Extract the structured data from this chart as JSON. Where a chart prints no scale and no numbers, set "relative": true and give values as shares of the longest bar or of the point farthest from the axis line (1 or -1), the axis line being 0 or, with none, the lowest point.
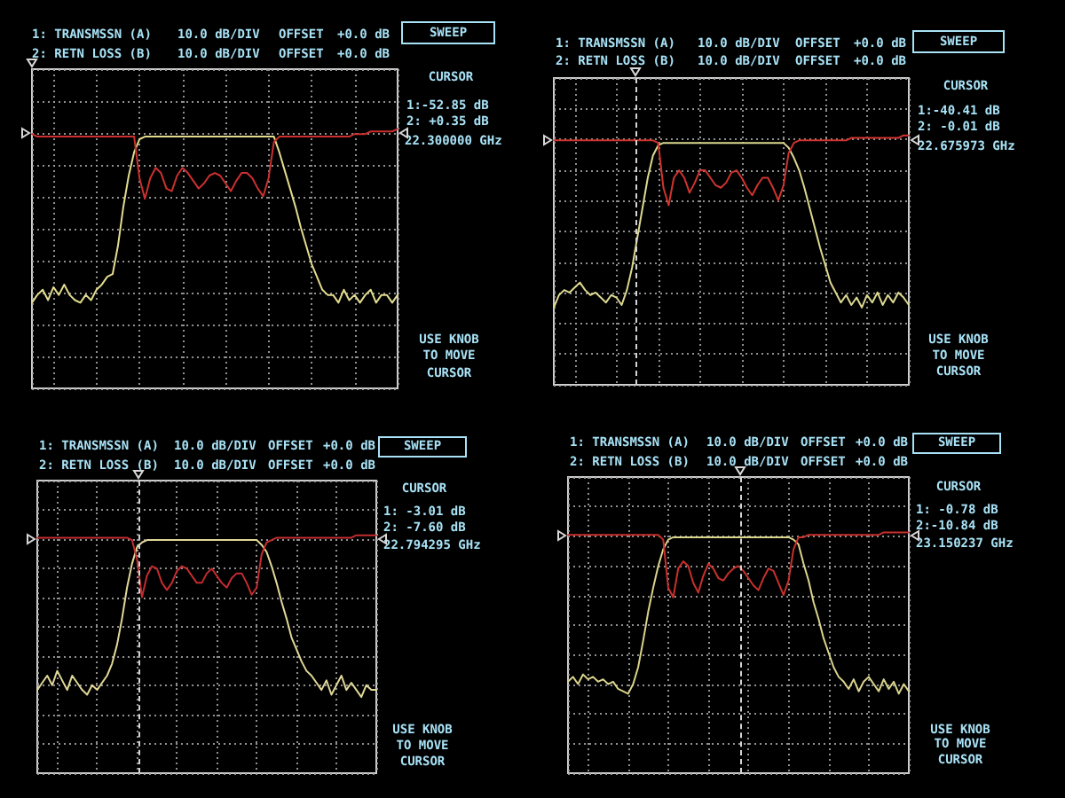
{
  "chart_data": [
    {
      "type": "line",
      "relative": true,
      "categories": [
        null,
        null,
        null,
        null,
        null,
        null,
        null,
        null,
        null,
        null,
        null,
        null,
        null,
        null,
        null,
        null,
        null,
        null,
        null,
        null,
        null,
        null,
        null,
        null,
        null,
        null,
        null,
        null,
        null,
        null,
        null,
        null,
        null,
        null,
        null,
        null,
        null,
        null,
        null,
        null,
        null,
        null,
        null,
        null,
        null,
        null,
        null,
        null,
        null,
        null,
        null,
        null,
        null,
        null,
        null,
        null,
        null,
        null,
        null,
        null,
        null,
        null,
        null,
        null,
        null,
        null,
        null,
        null,
        null
      ],
      "series": [
        {
          "color": "#e2dc8e",
          "values": [
            0.33,
            0.36,
            0.38,
            0.34,
            0.39,
            0.36,
            0.4,
            0.36,
            0.34,
            0.33,
            0.36,
            0.34,
            0.38,
            0.4,
            0.43,
            0.44,
            0.55,
            0.7,
            0.82,
            0.91,
            0.96,
            0.97,
            0.97,
            0.97,
            0.97,
            0.97,
            0.97,
            0.97,
            0.97,
            0.97,
            0.97,
            0.97,
            0.97,
            0.97,
            0.97,
            0.97,
            0.97,
            0.97,
            0.97,
            0.97,
            0.97,
            0.97,
            0.97,
            0.97,
            0.97,
            0.97,
            0.91,
            0.84,
            0.77,
            0.7,
            0.62,
            0.55,
            0.48,
            0.43,
            0.38,
            0.36,
            0.36,
            0.33,
            0.38,
            0.34,
            0.36,
            0.33,
            0.36,
            0.38,
            0.33,
            0.36,
            0.36,
            0.33,
            0.36
          ]
        },
        {
          "color": "#cc3030",
          "values": [
            0.98,
            0.97,
            0.97,
            0.97,
            0.97,
            0.97,
            0.97,
            0.97,
            0.97,
            0.97,
            0.97,
            0.97,
            0.97,
            0.97,
            0.97,
            0.97,
            0.97,
            0.97,
            0.97,
            0.97,
            0.81,
            0.73,
            0.81,
            0.85,
            0.83,
            0.77,
            0.76,
            0.82,
            0.85,
            0.83,
            0.8,
            0.77,
            0.79,
            0.82,
            0.83,
            0.82,
            0.79,
            0.76,
            0.8,
            0.83,
            0.83,
            0.81,
            0.77,
            0.74,
            0.81,
            0.95,
            0.97,
            0.97,
            0.97,
            0.97,
            0.97,
            0.97,
            0.97,
            0.97,
            0.97,
            0.97,
            0.97,
            0.97,
            0.97,
            0.97,
            0.98,
            0.98,
            0.98,
            0.99,
            0.99,
            0.99,
            0.99,
            0.99,
            1.0
          ]
        }
      ],
      "grid": true,
      "tick_labels": false,
      "marker": "none",
      "line_style": "solid",
      "annotations": [
        "1: TRANSMSSN (A)",
        "10.0 dB/DIV",
        "OFFSET",
        "+0.0 dB",
        "2: RETN LOSS (B)",
        "10.0 dB/DIV",
        "OFFSET",
        "+0.0 dB",
        "SWEEP",
        "CURSOR",
        "1:-52.85 dB",
        "2: +0.35 dB",
        "22.300000 GHz",
        "USE KNOB",
        "TO MOVE",
        "CURSOR"
      ]
    },
    {
      "type": "line",
      "relative": true,
      "categories": [
        null,
        null,
        null,
        null,
        null,
        null,
        null,
        null,
        null,
        null,
        null,
        null,
        null,
        null,
        null,
        null,
        null,
        null,
        null,
        null,
        null,
        null,
        null,
        null,
        null,
        null,
        null,
        null,
        null,
        null,
        null,
        null,
        null,
        null,
        null,
        null,
        null,
        null,
        null,
        null,
        null,
        null,
        null,
        null,
        null,
        null,
        null,
        null,
        null,
        null,
        null,
        null,
        null,
        null,
        null,
        null,
        null,
        null,
        null,
        null,
        null,
        null,
        null,
        null,
        null,
        null,
        null,
        null,
        null
      ],
      "series": [
        {
          "color": "#dcd890",
          "values": [
            0.31,
            0.36,
            0.38,
            0.37,
            0.39,
            0.41,
            0.38,
            0.36,
            0.37,
            0.35,
            0.33,
            0.36,
            0.35,
            0.32,
            0.38,
            0.47,
            0.59,
            0.71,
            0.83,
            0.92,
            0.96,
            0.97,
            0.97,
            0.97,
            0.97,
            0.97,
            0.97,
            0.97,
            0.97,
            0.97,
            0.97,
            0.97,
            0.97,
            0.97,
            0.97,
            0.97,
            0.97,
            0.97,
            0.97,
            0.97,
            0.97,
            0.97,
            0.97,
            0.97,
            0.97,
            0.95,
            0.91,
            0.86,
            0.79,
            0.71,
            0.63,
            0.55,
            0.48,
            0.41,
            0.37,
            0.33,
            0.36,
            0.32,
            0.35,
            0.31,
            0.36,
            0.33,
            0.37,
            0.32,
            0.36,
            0.33,
            0.37,
            0.35,
            0.32
          ]
        },
        {
          "color": "#d0342e",
          "values": [
            0.98,
            0.98,
            0.98,
            0.98,
            0.98,
            0.98,
            0.98,
            0.98,
            0.98,
            0.98,
            0.98,
            0.98,
            0.98,
            0.98,
            0.98,
            0.98,
            0.98,
            0.98,
            0.98,
            0.98,
            0.97,
            0.79,
            0.72,
            0.83,
            0.86,
            0.83,
            0.77,
            0.81,
            0.86,
            0.86,
            0.83,
            0.8,
            0.79,
            0.81,
            0.85,
            0.86,
            0.83,
            0.79,
            0.76,
            0.8,
            0.83,
            0.83,
            0.79,
            0.74,
            0.8,
            0.93,
            0.97,
            0.98,
            0.98,
            0.98,
            0.98,
            0.98,
            0.98,
            0.98,
            0.98,
            0.98,
            0.98,
            0.99,
            0.99,
            0.99,
            0.99,
            0.99,
            0.99,
            0.99,
            0.99,
            0.99,
            0.99,
            1.0,
            1.0
          ]
        }
      ],
      "grid": true,
      "tick_labels": false,
      "marker": "none",
      "line_style": "solid",
      "annotations": [
        "1: TRANSMSSN (A)",
        "10.0 dB/DIV",
        "OFFSET",
        "+0.0 dB",
        "2: RETN LOSS (B)",
        "10.0 dB/DIV",
        "OFFSET",
        "+0.0 dB",
        "SWEEP",
        "CURSOR",
        "1:-40.41 dB",
        "2: -0.01 dB",
        "22.675973 GHz",
        "USE KNOB",
        "TO MOVE",
        "CURSOR"
      ]
    },
    {
      "type": "line",
      "relative": true,
      "categories": [
        null,
        null,
        null,
        null,
        null,
        null,
        null,
        null,
        null,
        null,
        null,
        null,
        null,
        null,
        null,
        null,
        null,
        null,
        null,
        null,
        null,
        null,
        null,
        null,
        null,
        null,
        null,
        null,
        null,
        null,
        null,
        null,
        null,
        null,
        null,
        null,
        null,
        null,
        null,
        null,
        null,
        null,
        null,
        null,
        null,
        null,
        null,
        null,
        null,
        null,
        null,
        null,
        null,
        null,
        null,
        null,
        null,
        null,
        null,
        null,
        null,
        null,
        null,
        null,
        null,
        null,
        null,
        null,
        null
      ],
      "series": [
        {
          "color": "#e0d898",
          "values": [
            0.35,
            0.38,
            0.41,
            0.37,
            0.43,
            0.39,
            0.35,
            0.41,
            0.38,
            0.35,
            0.33,
            0.37,
            0.35,
            0.38,
            0.41,
            0.46,
            0.54,
            0.65,
            0.78,
            0.88,
            0.95,
            0.97,
            0.98,
            0.98,
            0.98,
            0.98,
            0.98,
            0.98,
            0.98,
            0.98,
            0.98,
            0.98,
            0.98,
            0.98,
            0.98,
            0.98,
            0.98,
            0.98,
            0.98,
            0.98,
            0.98,
            0.98,
            0.98,
            0.98,
            0.98,
            0.96,
            0.93,
            0.87,
            0.8,
            0.72,
            0.65,
            0.57,
            0.52,
            0.47,
            0.43,
            0.41,
            0.38,
            0.35,
            0.39,
            0.33,
            0.37,
            0.41,
            0.35,
            0.38,
            0.35,
            0.32,
            0.37,
            0.35,
            0.35
          ]
        },
        {
          "color": "#c42c30",
          "values": [
            0.99,
            0.99,
            0.99,
            0.99,
            0.99,
            0.99,
            0.99,
            0.99,
            0.99,
            0.99,
            0.99,
            0.99,
            0.99,
            0.99,
            0.99,
            0.99,
            0.99,
            0.99,
            0.99,
            0.98,
            0.9,
            0.74,
            0.83,
            0.87,
            0.86,
            0.8,
            0.77,
            0.8,
            0.85,
            0.87,
            0.86,
            0.83,
            0.8,
            0.8,
            0.84,
            0.86,
            0.83,
            0.8,
            0.78,
            0.82,
            0.84,
            0.84,
            0.8,
            0.75,
            0.78,
            0.92,
            0.97,
            0.98,
            0.99,
            0.99,
            0.99,
            0.99,
            0.99,
            0.99,
            0.99,
            0.99,
            0.99,
            0.99,
            0.99,
            0.99,
            0.99,
            0.99,
            0.99,
            0.99,
            1.0,
            1.0,
            1.0,
            1.0,
            1.0
          ]
        }
      ],
      "grid": true,
      "tick_labels": false,
      "marker": "none",
      "line_style": "solid",
      "annotations": [
        "1: TRANSMSSN (A)",
        "10.0 dB/DIV",
        "OFFSET",
        "+0.0 dB",
        "2: RETN LOSS (B)",
        "10.0 dB/DIV",
        "OFFSET",
        "+0.0 dB",
        "SWEEP",
        "CURSOR",
        "1: -3.01 dB",
        "2: -7.60 dB",
        "22.794295 GHz",
        "USE KNOB",
        "TO MOVE",
        "CURSOR"
      ]
    },
    {
      "type": "line",
      "relative": true,
      "categories": [
        null,
        null,
        null,
        null,
        null,
        null,
        null,
        null,
        null,
        null,
        null,
        null,
        null,
        null,
        null,
        null,
        null,
        null,
        null,
        null,
        null,
        null,
        null,
        null,
        null,
        null,
        null,
        null,
        null,
        null,
        null,
        null,
        null,
        null,
        null,
        null,
        null,
        null,
        null,
        null,
        null,
        null,
        null,
        null,
        null,
        null,
        null,
        null,
        null,
        null,
        null,
        null,
        null,
        null,
        null,
        null,
        null,
        null,
        null,
        null,
        null,
        null,
        null,
        null,
        null,
        null,
        null,
        null,
        null
      ],
      "series": [
        {
          "color": "#dad48c",
          "values": [
            0.38,
            0.4,
            0.37,
            0.41,
            0.39,
            0.4,
            0.38,
            0.39,
            0.37,
            0.38,
            0.35,
            0.34,
            0.33,
            0.37,
            0.44,
            0.55,
            0.67,
            0.77,
            0.86,
            0.93,
            0.97,
            0.98,
            0.98,
            0.98,
            0.98,
            0.98,
            0.98,
            0.98,
            0.98,
            0.98,
            0.98,
            0.98,
            0.98,
            0.98,
            0.98,
            0.98,
            0.98,
            0.98,
            0.98,
            0.98,
            0.98,
            0.98,
            0.98,
            0.98,
            0.98,
            0.97,
            0.95,
            0.87,
            0.8,
            0.71,
            0.64,
            0.56,
            0.5,
            0.44,
            0.4,
            0.38,
            0.35,
            0.39,
            0.34,
            0.38,
            0.4,
            0.37,
            0.34,
            0.39,
            0.35,
            0.38,
            0.33,
            0.37,
            0.34
          ]
        },
        {
          "color": "#c8302c",
          "values": [
            0.99,
            0.99,
            0.99,
            0.99,
            0.99,
            0.99,
            0.99,
            0.99,
            0.99,
            0.99,
            0.99,
            0.99,
            0.99,
            0.99,
            0.99,
            0.99,
            0.99,
            0.99,
            0.99,
            0.97,
            0.77,
            0.73,
            0.85,
            0.88,
            0.86,
            0.79,
            0.75,
            0.82,
            0.87,
            0.85,
            0.81,
            0.8,
            0.83,
            0.85,
            0.86,
            0.84,
            0.81,
            0.78,
            0.76,
            0.81,
            0.85,
            0.84,
            0.79,
            0.74,
            0.8,
            0.93,
            0.98,
            0.98,
            0.99,
            0.99,
            0.99,
            0.99,
            0.99,
            0.99,
            0.99,
            0.99,
            0.99,
            0.99,
            0.99,
            0.99,
            0.99,
            0.99,
            0.99,
            1.0,
            1.0,
            1.0,
            1.0,
            1.0,
            1.0
          ]
        }
      ],
      "grid": true,
      "tick_labels": false,
      "marker": "none",
      "line_style": "solid",
      "annotations": [
        "1: TRANSMSSN (A)",
        "10.0 dB/DIV",
        "OFFSET",
        "+0.0 dB",
        "2: RETN LOSS (B)",
        "10.0 dB/DIV",
        "OFFSET",
        "+0.0 dB",
        "SWEEP",
        "CURSOR",
        "1: -0.78 dB",
        "2:-10.84 dB",
        "23.150237 GHz",
        "USE KNOB",
        "TO MOVE",
        "CURSOR"
      ]
    }
  ]
}
